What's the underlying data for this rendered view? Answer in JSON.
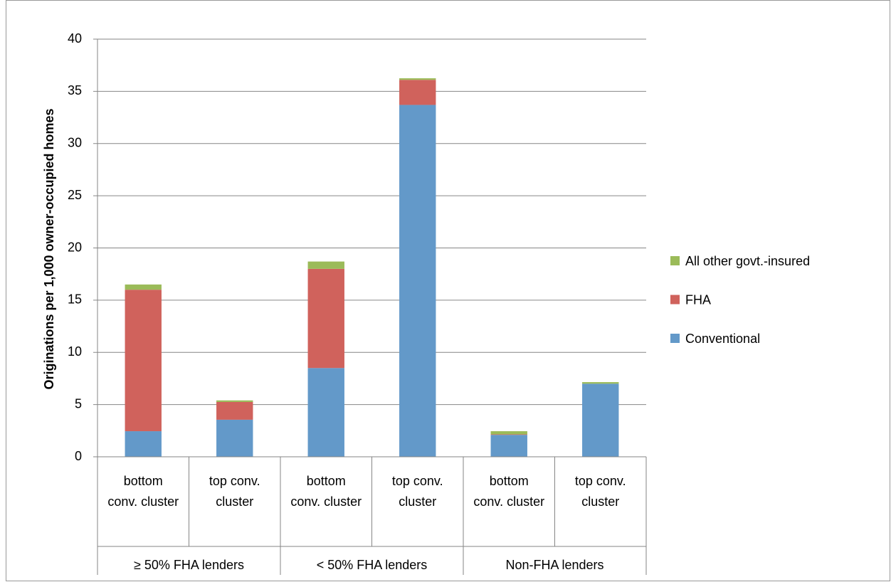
{
  "chart_data": {
    "type": "stacked_bar",
    "y_label": "Originations per 1,000 owner-occupied homes",
    "groups": [
      {
        "label": "≥ 50% FHA lenders",
        "categories": [
          "bottom conv. cluster",
          "top conv. cluster"
        ]
      },
      {
        "label": "< 50% FHA lenders",
        "categories": [
          "bottom conv. cluster",
          "top conv. cluster"
        ]
      },
      {
        "label": "Non-FHA lenders",
        "categories": [
          "bottom conv. cluster",
          "top conv. cluster"
        ]
      }
    ],
    "series": [
      {
        "name": "Conventional",
        "color": "#6399c9",
        "values": [
          2.45,
          3.55,
          8.5,
          33.7,
          2.1,
          7.0
        ]
      },
      {
        "name": "FHA",
        "color": "#d0625c",
        "values": [
          13.55,
          1.7,
          9.5,
          2.4,
          0.05,
          0.0
        ]
      },
      {
        "name": "All other govt.-insured",
        "color": "#9bbb59",
        "values": [
          0.5,
          0.15,
          0.7,
          0.15,
          0.3,
          0.15
        ]
      }
    ],
    "ylim": [
      0,
      40
    ],
    "yticks": [
      0,
      5,
      10,
      15,
      20,
      25,
      30,
      35,
      40
    ],
    "grid": true,
    "legend": "right"
  }
}
